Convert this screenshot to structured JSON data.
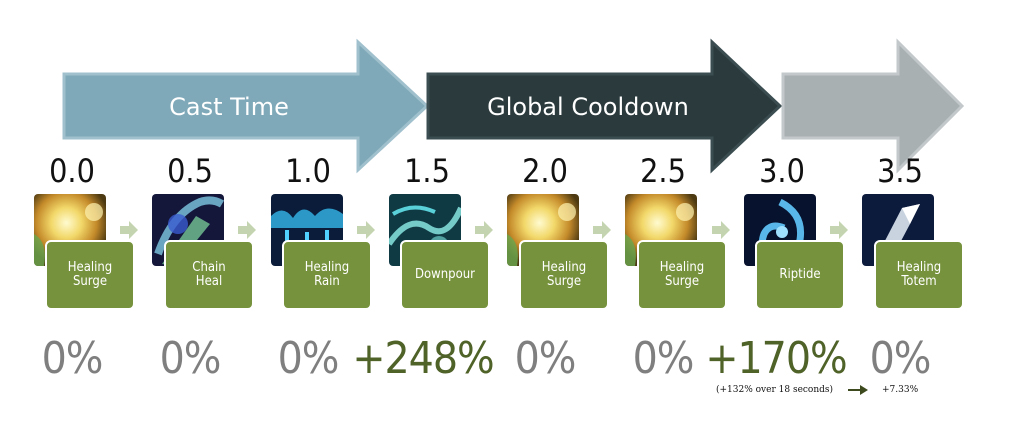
{
  "phases": [
    {
      "label": "Cast Time",
      "fill": "#7fa9b8"
    },
    {
      "label": "Global Cooldown",
      "fill": "#2b3a3d"
    },
    {
      "label": "",
      "fill": "#a8b0b1"
    }
  ],
  "times": [
    "0.0",
    "0.5",
    "1.0",
    "1.5",
    "2.0",
    "2.5",
    "3.0",
    "3.5"
  ],
  "spells": [
    {
      "name": "Healing\nSurge",
      "icon": "healing-surge-icon"
    },
    {
      "name": "Chain\nHeal",
      "icon": "chain-heal-icon"
    },
    {
      "name": "Healing\nRain",
      "icon": "healing-rain-icon"
    },
    {
      "name": "Downpour",
      "icon": "downpour-icon"
    },
    {
      "name": "Healing\nSurge",
      "icon": "healing-surge-icon"
    },
    {
      "name": "Healing\nSurge",
      "icon": "healing-surge-icon"
    },
    {
      "name": "Riptide",
      "icon": "riptide-icon"
    },
    {
      "name": "Healing\nTotem",
      "icon": "healing-totem-icon"
    }
  ],
  "percents": [
    {
      "value": "0%",
      "highlight": false
    },
    {
      "value": "0%",
      "highlight": false
    },
    {
      "value": "0%",
      "highlight": false
    },
    {
      "value": "+248%",
      "highlight": true
    },
    {
      "value": "0%",
      "highlight": false
    },
    {
      "value": "0%",
      "highlight": false
    },
    {
      "value": "+170%",
      "highlight": true
    },
    {
      "value": "0%",
      "highlight": false
    }
  ],
  "notes": {
    "riptide_over_time": "(+132% over 18 seconds)",
    "result": "+7.33%"
  },
  "colors": {
    "card_green": "#76923c",
    "highlight_green": "#4f6228",
    "neutral_gray": "#7f7f7f",
    "small_arrow": "#c4d3b0"
  }
}
